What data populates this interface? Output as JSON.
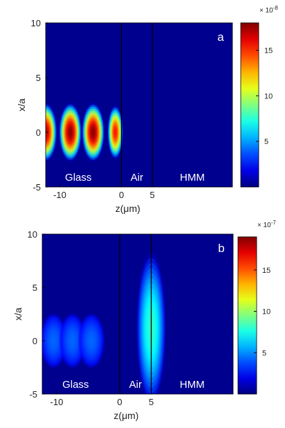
{
  "chart_data": [
    {
      "type": "heatmap",
      "panel_label": "a",
      "xlabel": "z(μm)",
      "ylabel": "x/a",
      "xlim": [
        -12.3,
        18
      ],
      "ylim": [
        -5,
        10
      ],
      "xticks": [
        -10,
        0,
        5
      ],
      "yticks": [
        -5,
        0,
        5,
        10
      ],
      "interfaces_z": [
        0,
        5
      ],
      "regions": [
        "Glass",
        "Air",
        "HMM"
      ],
      "colorbar": {
        "min": 0,
        "max": 18,
        "ticks": [
          5,
          10,
          15
        ],
        "exponent_label": "× 10",
        "exponent": "-8"
      },
      "intensity_peaks": [
        {
          "z": -12.3,
          "x": 0,
          "value": 17
        },
        {
          "z": -8.3,
          "x": 0,
          "value": 18
        },
        {
          "z": -4.6,
          "x": 0,
          "value": 18
        },
        {
          "z": -1.0,
          "x": 0,
          "value": 15
        }
      ]
    },
    {
      "type": "heatmap",
      "panel_label": "b",
      "xlabel": "z(μm)",
      "ylabel": "x/a",
      "xlim": [
        -12.3,
        18
      ],
      "ylim": [
        -5,
        10
      ],
      "xticks": [
        -10,
        0,
        5
      ],
      "yticks": [
        -5,
        0,
        5,
        10
      ],
      "interfaces_z": [
        0,
        5
      ],
      "regions": [
        "Glass",
        "Air",
        "HMM"
      ],
      "colorbar": {
        "min": 0,
        "max": 19,
        "ticks": [
          5,
          10,
          15
        ],
        "exponent_label": "× 10",
        "exponent": "-7"
      },
      "intensity_peaks": [
        {
          "z": 5,
          "x": 1.5,
          "value": 19
        },
        {
          "z": -10.5,
          "x": 0,
          "value": 1.2
        },
        {
          "z": -7.5,
          "x": 0,
          "value": 1.2
        },
        {
          "z": -4.5,
          "x": 0,
          "value": 1.2
        }
      ]
    }
  ],
  "colors": {
    "background": "#00008f",
    "colormap": [
      "#00008f",
      "#0000ff",
      "#00ffff",
      "#ffff00",
      "#ff0000",
      "#800000"
    ],
    "interface_line": "#000000",
    "overlay_text": "#ffffff"
  }
}
